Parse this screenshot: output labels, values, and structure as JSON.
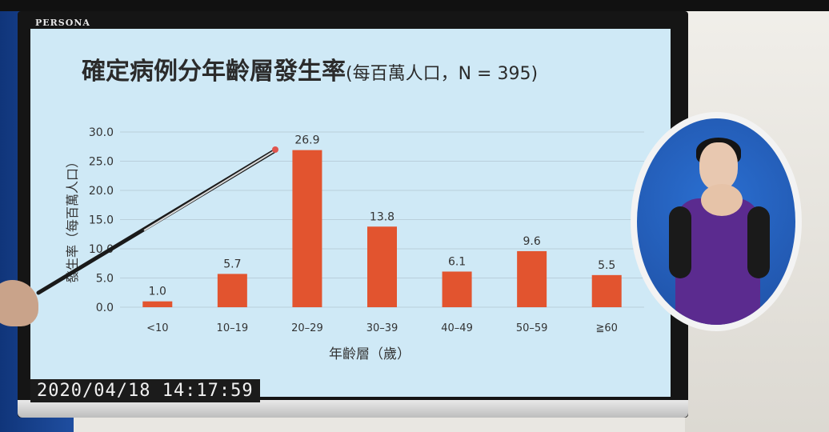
{
  "monitor": {
    "brand": "PERSONA"
  },
  "slide": {
    "title": "確定病例分年齡層發生率",
    "subtitle": "(每百萬人口，N = 395)"
  },
  "chart_data": {
    "type": "bar",
    "categories": [
      "<10",
      "10–19",
      "20–29",
      "30–39",
      "40–49",
      "50–59",
      "≧60"
    ],
    "values": [
      1.0,
      5.7,
      26.9,
      13.8,
      6.1,
      9.6,
      5.5
    ],
    "value_labels": [
      "1.0",
      "5.7",
      "26.9",
      "13.8",
      "6.1",
      "9.6",
      "5.5"
    ],
    "xlabel": "年齡層（歲）",
    "ylabel": "發生率（每百萬人口）",
    "ylim": [
      0,
      30
    ],
    "yticks": [
      "0.0",
      "5.0",
      "10.0",
      "15.0",
      "20.0",
      "25.0",
      "30.0"
    ],
    "bar_color": "#e2542f",
    "grid": true,
    "legend": "none"
  },
  "overlay": {
    "timestamp": "2020/04/18 14:17:59"
  },
  "colors": {
    "screen": "#cfe9f6",
    "bar": "#e2542f",
    "grid": "#b9cfdb"
  }
}
